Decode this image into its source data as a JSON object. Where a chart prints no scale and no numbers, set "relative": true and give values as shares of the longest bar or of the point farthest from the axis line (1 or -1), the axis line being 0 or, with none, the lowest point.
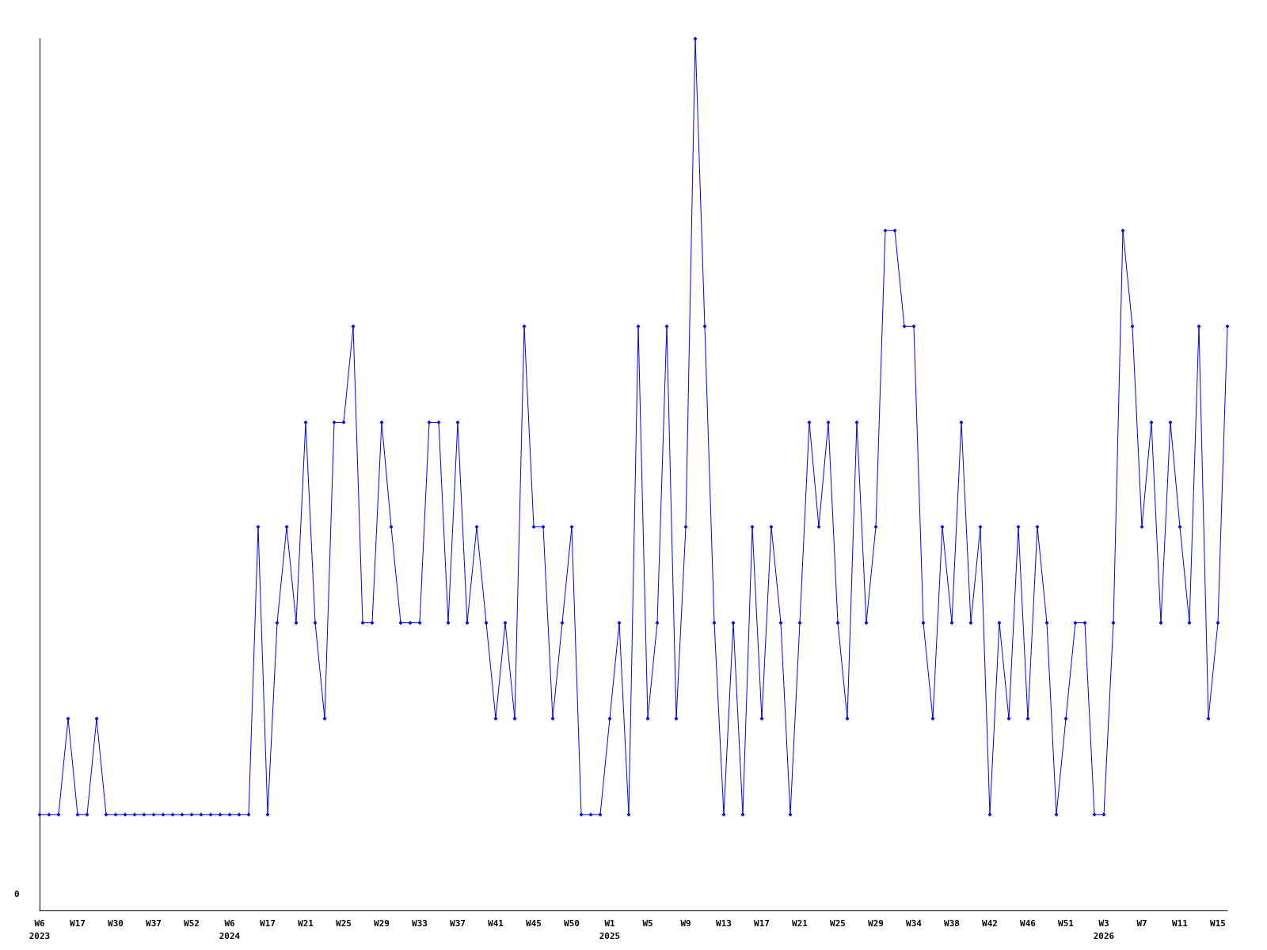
{
  "chart_data": {
    "type": "line",
    "relative": true,
    "annotations": [
      "0"
    ],
    "grid": false,
    "marker": "diamond",
    "line_style": "solid",
    "categories": [
      "W6\n2023",
      null,
      null,
      null,
      "W17",
      null,
      null,
      null,
      "W30",
      null,
      null,
      null,
      "W37",
      null,
      null,
      null,
      "W52",
      null,
      null,
      null,
      "W6\n2024",
      null,
      null,
      null,
      "W17",
      null,
      null,
      null,
      "W21",
      null,
      null,
      null,
      "W25",
      null,
      null,
      null,
      "W29",
      null,
      null,
      null,
      "W33",
      null,
      null,
      null,
      "W37",
      null,
      null,
      null,
      "W41",
      null,
      null,
      null,
      "W45",
      null,
      null,
      null,
      "W50",
      null,
      null,
      null,
      "W1\n2025",
      null,
      null,
      null,
      "W5",
      null,
      null,
      null,
      "W9",
      null,
      null,
      null,
      "W13",
      null,
      null,
      null,
      "W17",
      null,
      null,
      null,
      "W21",
      null,
      null,
      null,
      "W25",
      null,
      null,
      null,
      "W29",
      null,
      null,
      null,
      "W34",
      null,
      null,
      null,
      "W38",
      null,
      null,
      null,
      "W42",
      null,
      null,
      null,
      "W46",
      null,
      null,
      null,
      "W51",
      null,
      null,
      null,
      "W3\n2026",
      null,
      null,
      null,
      "W7",
      null,
      null,
      null,
      "W11",
      null,
      null,
      null,
      "W15",
      null
    ],
    "series": [
      {
        "color": "#0000ff",
        "values": [
          0.11,
          0.11,
          0.11,
          0.22,
          0.11,
          0.11,
          0.22,
          0.11,
          0.11,
          0.11,
          0.11,
          0.11,
          0.11,
          0.11,
          0.11,
          0.11,
          0.11,
          0.11,
          0.11,
          0.11,
          0.11,
          0.11,
          0.11,
          0.44,
          0.11,
          0.33,
          0.44,
          0.33,
          0.56,
          0.33,
          0.22,
          0.56,
          0.56,
          0.67,
          0.33,
          0.33,
          0.56,
          0.44,
          0.33,
          0.33,
          0.33,
          0.56,
          0.56,
          0.33,
          0.56,
          0.33,
          0.44,
          0.33,
          0.22,
          0.33,
          0.22,
          0.67,
          0.44,
          0.44,
          0.22,
          0.33,
          0.44,
          0.11,
          0.11,
          0.11,
          0.22,
          0.33,
          0.11,
          0.67,
          0.22,
          0.33,
          0.67,
          0.22,
          0.44,
          1,
          0.67,
          0.33,
          0.11,
          0.33,
          0.11,
          0.44,
          0.22,
          0.44,
          0.33,
          0.11,
          0.33,
          0.56,
          0.44,
          0.56,
          0.33,
          0.22,
          0.56,
          0.33,
          0.44,
          0.78,
          0.78,
          0.67,
          0.67,
          0.33,
          0.22,
          0.44,
          0.33,
          0.56,
          0.33,
          0.44,
          0.11,
          0.33,
          0.22,
          0.44,
          0.22,
          0.44,
          0.33,
          0.11,
          0.22,
          0.33,
          0.33,
          0.11,
          0.11,
          0.33,
          0.78,
          0.67,
          0.44,
          0.56,
          0.33,
          0.56,
          0.44,
          0.33,
          0.67,
          0.22,
          0.33,
          0.67
        ]
      }
    ]
  }
}
